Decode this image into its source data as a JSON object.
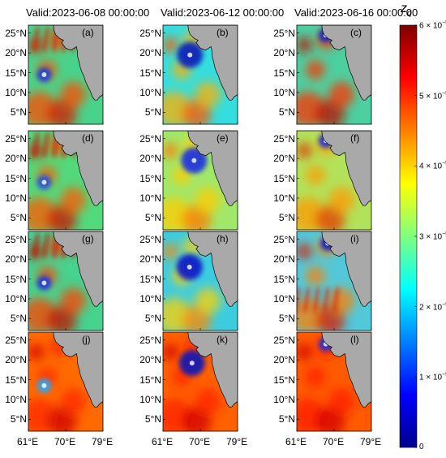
{
  "chart_data": {
    "type": "heatmap",
    "column_titles": [
      "Valid:2023-06-08 00:00:00",
      "Valid:2023-06-12 00:00:00",
      "Valid:2023-06-16 00:00:00"
    ],
    "panel_labels": [
      "(a)",
      "(b)",
      "(c)",
      "(d)",
      "(e)",
      "(f)",
      "(g)",
      "(h)",
      "(i)",
      "(j)",
      "(k)",
      "(l)"
    ],
    "lat_ticks": [
      "25°N",
      "20°N",
      "15°N",
      "10°N",
      "5°N"
    ],
    "lon_ticks": [
      "61°E",
      "70°E",
      "79°E"
    ],
    "lon_range": [
      61,
      79
    ],
    "lat_range": [
      2,
      27
    ],
    "colorbar": {
      "title": "z",
      "subscript": "q",
      "colormap": "jet",
      "range": [
        0,
        6e-05
      ],
      "ticks": [
        {
          "mant": "0",
          "exp": ""
        },
        {
          "mant": "1 × 10",
          "exp": "−5"
        },
        {
          "mant": "2 × 10",
          "exp": "−5"
        },
        {
          "mant": "3 × 10",
          "exp": "−5"
        },
        {
          "mant": "4 × 10",
          "exp": "−5"
        },
        {
          "mant": "5 × 10",
          "exp": "−5"
        },
        {
          "mant": "6 × 10",
          "exp": "−5"
        }
      ]
    },
    "land_color": "#a9a9a9",
    "grid": false
  }
}
